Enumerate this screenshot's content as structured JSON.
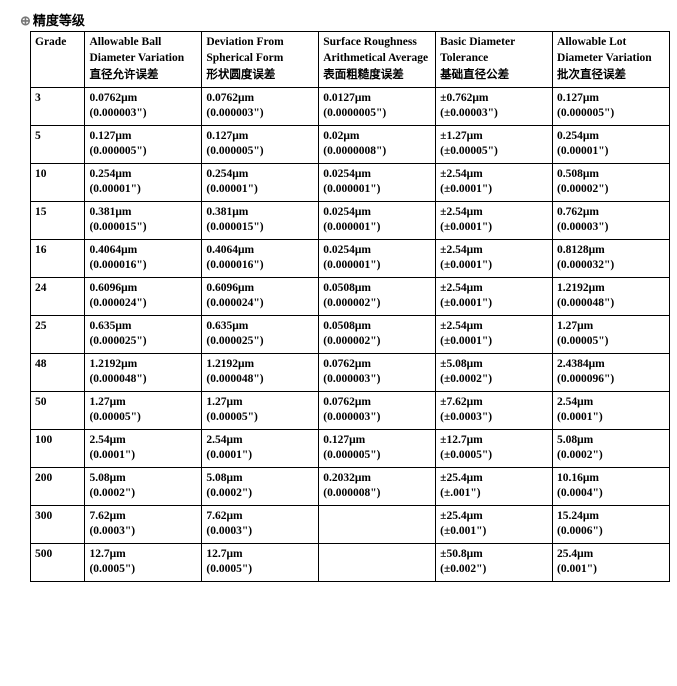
{
  "page_title_cn": "精度等级",
  "headers": [
    {
      "en": "Grade",
      "cn": ""
    },
    {
      "en": "Allowable Ball Diameter Variation",
      "cn": "直径允许误差"
    },
    {
      "en": "Deviation From Spherical Form",
      "cn": "形状圆度误差"
    },
    {
      "en": "Surface Roughness Arithmetical Average",
      "cn": "表面粗糙度误差"
    },
    {
      "en": "Basic Diameter Tolerance",
      "cn": "基础直径公差"
    },
    {
      "en": "Allowable Lot Diameter Variation",
      "cn": "批次直径误差"
    }
  ],
  "rows": [
    {
      "grade": "3",
      "c1": {
        "p": "0.0762μm",
        "s": "(0.000003\")"
      },
      "c2": {
        "p": "0.0762μm",
        "s": "(0.000003\")"
      },
      "c3": {
        "p": "0.0127μm",
        "s": "(0.0000005\")"
      },
      "c4": {
        "p": "±0.762μm",
        "s": "(±0.00003\")"
      },
      "c5": {
        "p": "0.127μm",
        "s": "(0.000005\")"
      }
    },
    {
      "grade": "5",
      "c1": {
        "p": "0.127μm",
        "s": "(0.000005\")"
      },
      "c2": {
        "p": "0.127μm",
        "s": "(0.000005\")"
      },
      "c3": {
        "p": "0.02μm",
        "s": "(0.0000008\")"
      },
      "c4": {
        "p": "±1.27μm",
        "s": "(±0.00005\")"
      },
      "c5": {
        "p": "0.254μm",
        "s": "(0.00001\")"
      }
    },
    {
      "grade": "10",
      "c1": {
        "p": "0.254μm",
        "s": "(0.00001\")"
      },
      "c2": {
        "p": "0.254μm",
        "s": "(0.00001\")"
      },
      "c3": {
        "p": "0.0254μm",
        "s": "(0.000001\")"
      },
      "c4": {
        "p": "±2.54μm",
        "s": "(±0.0001\")"
      },
      "c5": {
        "p": "0.508μm",
        "s": "(0.00002\")"
      }
    },
    {
      "grade": "15",
      "c1": {
        "p": "0.381μm",
        "s": "(0.000015\")"
      },
      "c2": {
        "p": "0.381μm",
        "s": "(0.000015\")"
      },
      "c3": {
        "p": "0.0254μm",
        "s": "(0.000001\")"
      },
      "c4": {
        "p": "±2.54μm",
        "s": "(±0.0001\")"
      },
      "c5": {
        "p": "0.762μm",
        "s": "(0.00003\")"
      }
    },
    {
      "grade": "16",
      "c1": {
        "p": "0.4064μm",
        "s": "(0.000016\")"
      },
      "c2": {
        "p": "0.4064μm",
        "s": "(0.000016\")"
      },
      "c3": {
        "p": "0.0254μm",
        "s": "(0.000001\")"
      },
      "c4": {
        "p": "±2.54μm",
        "s": "(±0.0001\")"
      },
      "c5": {
        "p": "0.8128μm",
        "s": "(0.000032\")"
      }
    },
    {
      "grade": "24",
      "c1": {
        "p": "0.6096μm",
        "s": "(0.000024\")"
      },
      "c2": {
        "p": "0.6096μm",
        "s": "(0.000024\")"
      },
      "c3": {
        "p": "0.0508μm",
        "s": "(0.000002\")"
      },
      "c4": {
        "p": "±2.54μm",
        "s": "(±0.0001\")"
      },
      "c5": {
        "p": "1.2192μm",
        "s": "(0.000048\")"
      }
    },
    {
      "grade": "25",
      "c1": {
        "p": "0.635μm",
        "s": "(0.000025\")"
      },
      "c2": {
        "p": "0.635μm",
        "s": "(0.000025\")"
      },
      "c3": {
        "p": "0.0508μm",
        "s": "(0.000002\")"
      },
      "c4": {
        "p": "±2.54μm",
        "s": "(±0.0001\")"
      },
      "c5": {
        "p": "1.27μm",
        "s": "(0.00005\")"
      }
    },
    {
      "grade": "48",
      "c1": {
        "p": "1.2192μm",
        "s": "(0.000048\")"
      },
      "c2": {
        "p": "1.2192μm",
        "s": "(0.000048\")"
      },
      "c3": {
        "p": "0.0762μm",
        "s": "(0.000003\")"
      },
      "c4": {
        "p": "±5.08μm",
        "s": "(±0.0002\")"
      },
      "c5": {
        "p": "2.4384μm",
        "s": "(0.000096\")"
      }
    },
    {
      "grade": "50",
      "c1": {
        "p": "1.27μm",
        "s": "(0.00005\")"
      },
      "c2": {
        "p": "1.27μm",
        "s": "(0.00005\")"
      },
      "c3": {
        "p": "0.0762μm",
        "s": "(0.000003\")"
      },
      "c4": {
        "p": "±7.62μm",
        "s": "(±0.0003\")"
      },
      "c5": {
        "p": "2.54μm",
        "s": "(0.0001\")"
      }
    },
    {
      "grade": "100",
      "c1": {
        "p": "2.54μm",
        "s": "(0.0001\")"
      },
      "c2": {
        "p": "2.54μm",
        "s": "(0.0001\")"
      },
      "c3": {
        "p": "0.127μm",
        "s": "(0.000005\")"
      },
      "c4": {
        "p": "±12.7μm",
        "s": "(±0.0005\")"
      },
      "c5": {
        "p": "5.08μm",
        "s": "(0.0002\")"
      }
    },
    {
      "grade": "200",
      "c1": {
        "p": "5.08μm",
        "s": "(0.0002\")"
      },
      "c2": {
        "p": "5.08μm",
        "s": "(0.0002\")"
      },
      "c3": {
        "p": "0.2032μm",
        "s": "(0.000008\")"
      },
      "c4": {
        "p": "±25.4μm",
        "s": "(±.001\")"
      },
      "c5": {
        "p": "10.16μm",
        "s": "(0.0004\")"
      }
    },
    {
      "grade": "300",
      "c1": {
        "p": "7.62μm",
        "s": "(0.0003\")"
      },
      "c2": {
        "p": "7.62μm",
        "s": "(0.0003\")"
      },
      "c3": {
        "p": "",
        "s": ""
      },
      "c4": {
        "p": "±25.4μm",
        "s": "(±0.001\")"
      },
      "c5": {
        "p": "15.24μm",
        "s": "(0.0006\")"
      }
    },
    {
      "grade": "500",
      "c1": {
        "p": "12.7μm",
        "s": "(0.0005\")"
      },
      "c2": {
        "p": "12.7μm",
        "s": "(0.0005\")"
      },
      "c3": {
        "p": "",
        "s": ""
      },
      "c4": {
        "p": "±50.8μm",
        "s": "(±0.002\")"
      },
      "c5": {
        "p": "25.4μm",
        "s": "(0.001\")"
      }
    }
  ]
}
